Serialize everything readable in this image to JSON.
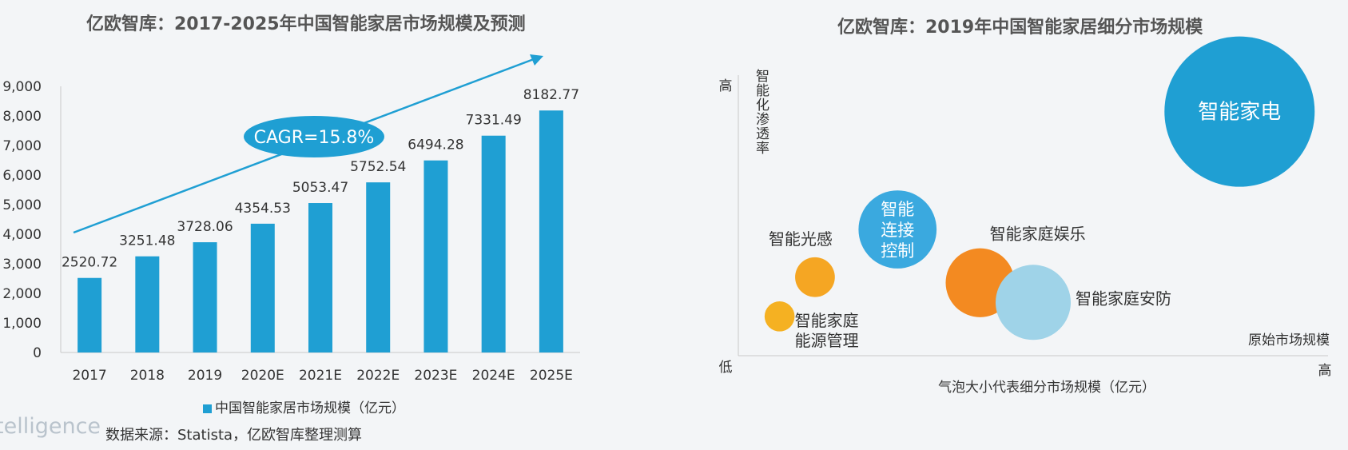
{
  "chart_data": [
    {
      "type": "bar",
      "title": "亿欧智库：2017-2025年中国智能家居市场规模及预测",
      "categories": [
        "2017",
        "2018",
        "2019",
        "2020E",
        "2021E",
        "2022E",
        "2023E",
        "2024E",
        "2025E"
      ],
      "series": [
        {
          "name": "中国智能家居市场规模（亿元）",
          "values": [
            2520.72,
            3251.48,
            3728.06,
            4354.53,
            5053.47,
            5752.54,
            6494.28,
            7331.49,
            8182.77
          ]
        }
      ],
      "value_labels": [
        "2520.72",
        "3251.48",
        "3728.06",
        "4354.53",
        "5053.47",
        "5752.54",
        "6494.28",
        "7331.49",
        "8182.77"
      ],
      "yticks": [
        "0",
        "1,000",
        "2,000",
        "3,000",
        "4,000",
        "5,000",
        "6,000",
        "7,000",
        "8,000",
        "9,000"
      ],
      "ylim": [
        0,
        9000
      ],
      "annotation": "CAGR=15.8%",
      "legend_label": "中国智能家居市场规模（亿元）",
      "bar_color": "#1f9fd3",
      "annotation_color": "#1f9fd3"
    },
    {
      "type": "scatter",
      "title": "亿欧智库：2019年中国智能家居细分市场规模",
      "ylabel": "智能化渗透率",
      "xlabel": "原始市场规模",
      "y_high": "高",
      "y_low": "低",
      "x_high": "高",
      "size_note": "气泡大小代表细分市场规模（亿元）",
      "points": [
        {
          "label": "智能家电",
          "x": 0.85,
          "y": 0.87,
          "size": 1.0,
          "color": "#1f9fd3"
        },
        {
          "label": "智能连接控制",
          "x": 0.27,
          "y": 0.45,
          "size": 0.27,
          "color": "#3aa9df"
        },
        {
          "label": "智能家庭娱乐",
          "x": 0.41,
          "y": 0.26,
          "size": 0.21,
          "color": "#f38a21"
        },
        {
          "label": "智能家庭安防",
          "x": 0.5,
          "y": 0.19,
          "size": 0.25,
          "color": "#9fd3e8"
        },
        {
          "label": "智能光感",
          "x": 0.13,
          "y": 0.28,
          "size": 0.07,
          "color": "#f5a623"
        },
        {
          "label": "智能家庭能源管理",
          "x": 0.07,
          "y": 0.14,
          "size": 0.04,
          "color": "#f5b122"
        }
      ]
    }
  ],
  "footer": {
    "source": "数据来源：Statista，亿欧智库整理测算",
    "brand": "telligence"
  }
}
